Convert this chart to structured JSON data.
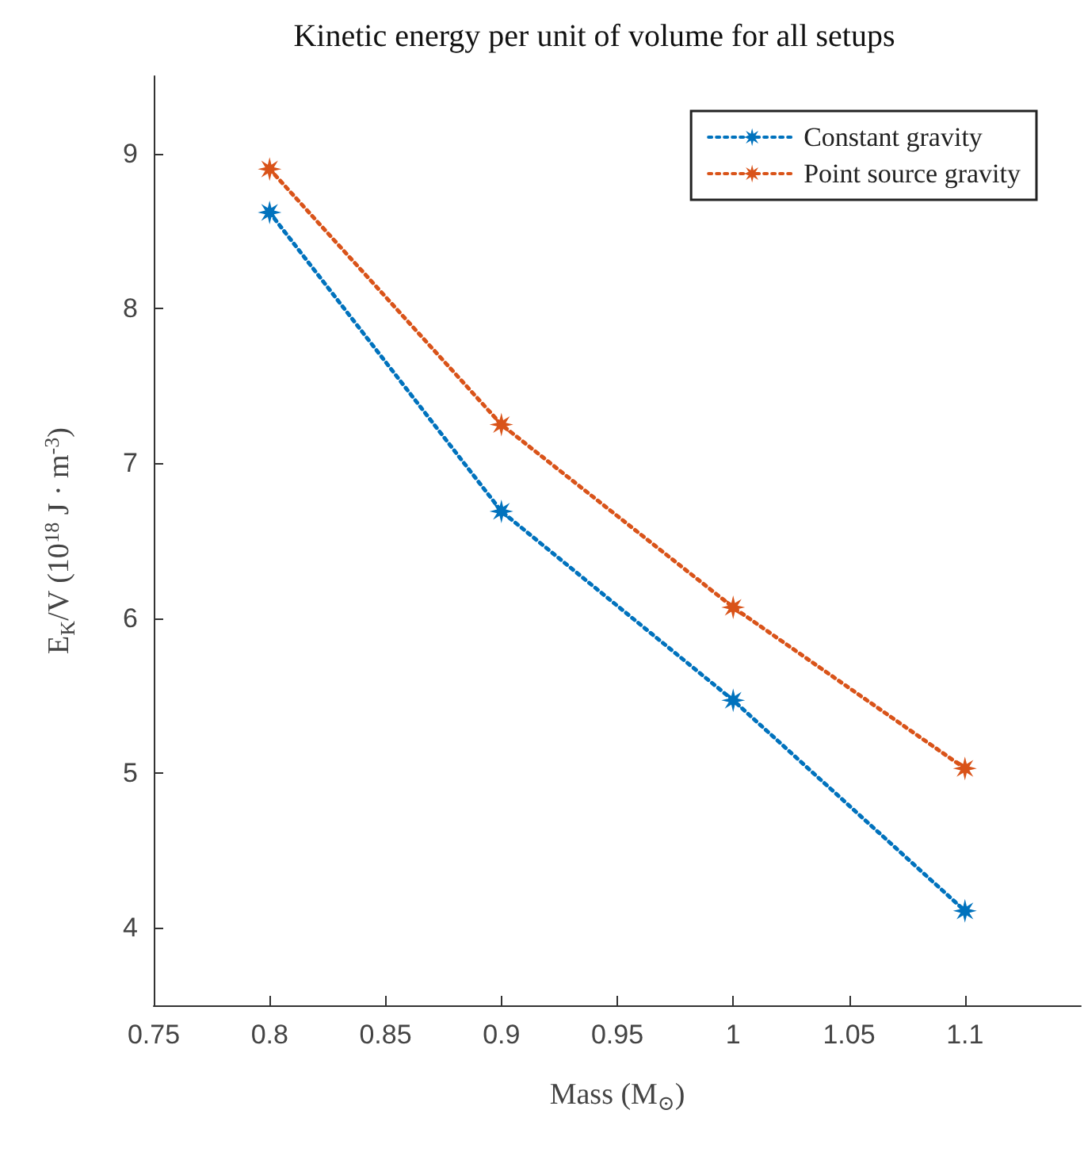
{
  "chart_data": {
    "type": "line",
    "title": "Kinetic energy per unit of volume for all setups",
    "xlabel": "Mass (M$_{⊙}$)",
    "ylabel": "E$_{K}$/V (10$^{18}$ J · m$^{-3}$)",
    "x": [
      0.8,
      0.9,
      1.0,
      1.1
    ],
    "series": [
      {
        "name": "Constant gravity",
        "color": "#0072bd",
        "values": [
          8.62,
          6.69,
          5.47,
          4.11
        ]
      },
      {
        "name": "Point source gravity",
        "color": "#d95319",
        "values": [
          8.9,
          7.25,
          6.07,
          5.03
        ]
      }
    ],
    "xlim": [
      0.75,
      1.15
    ],
    "xticks": [
      0.75,
      0.8,
      0.85,
      0.9,
      0.95,
      1,
      1.05,
      1.1
    ],
    "ylim": [
      3.5,
      9.5
    ],
    "yticks": [
      4,
      5,
      6,
      7,
      8,
      9
    ],
    "grid": false,
    "legend": "top right",
    "marker": "star",
    "line_style": "dotted"
  }
}
